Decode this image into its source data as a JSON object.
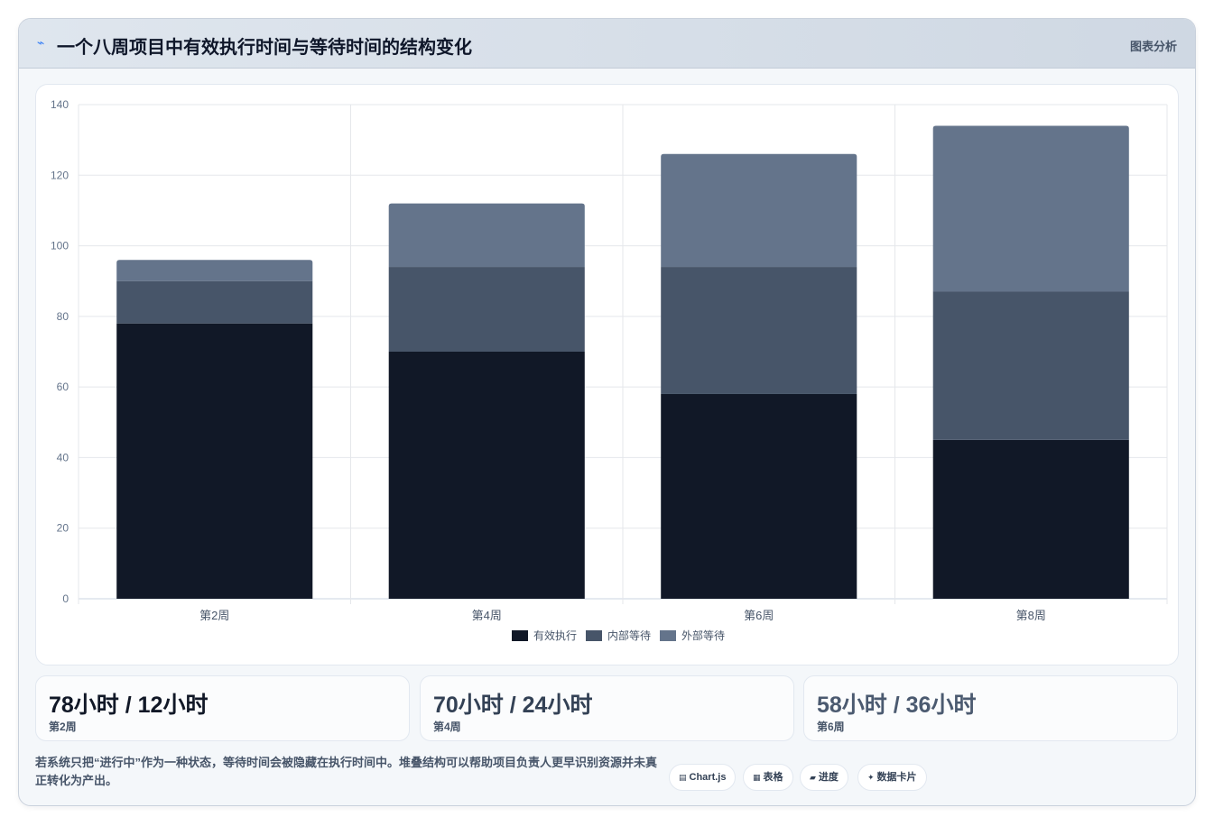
{
  "header": {
    "icon": "bolt-icon",
    "title": "一个八周项目中有效执行时间与等待时间的结构变化",
    "tag": "图表分析"
  },
  "chart_data": {
    "type": "bar",
    "stacked": true,
    "categories": [
      "第2周",
      "第4周",
      "第6周",
      "第8周"
    ],
    "series": [
      {
        "name": "有效执行",
        "color": "#111827",
        "values": [
          78,
          70,
          58,
          45
        ]
      },
      {
        "name": "内部等待",
        "color": "#475569",
        "values": [
          12,
          24,
          36,
          42
        ]
      },
      {
        "name": "外部等待",
        "color": "#64748b",
        "values": [
          6,
          18,
          32,
          47
        ]
      }
    ],
    "ylim": [
      0,
      140
    ],
    "yticks": [
      0,
      20,
      40,
      60,
      80,
      100,
      120,
      140
    ],
    "grid": true,
    "legend_position": "bottom"
  },
  "stats": [
    {
      "value": "78小时 / 12小时",
      "label": "第2周",
      "color": "#111827"
    },
    {
      "value": "70小时 / 24小时",
      "label": "第4周",
      "color": "#334155"
    },
    {
      "value": "58小时 / 36小时",
      "label": "第6周",
      "color": "#4b5a70"
    }
  ],
  "footnote": "若系统只把“进行中”作为一种状态，等待时间会被隐藏在执行时间中。堆叠结构可以帮助项目负责人更早识别资源并未真正转化为产出。",
  "pills": [
    {
      "icon": "chart-icon",
      "label": "Chart.js"
    },
    {
      "icon": "table-icon",
      "label": "表格"
    },
    {
      "icon": "progress-icon",
      "label": "进度"
    },
    {
      "icon": "sparkle-icon",
      "label": "数据卡片"
    }
  ]
}
